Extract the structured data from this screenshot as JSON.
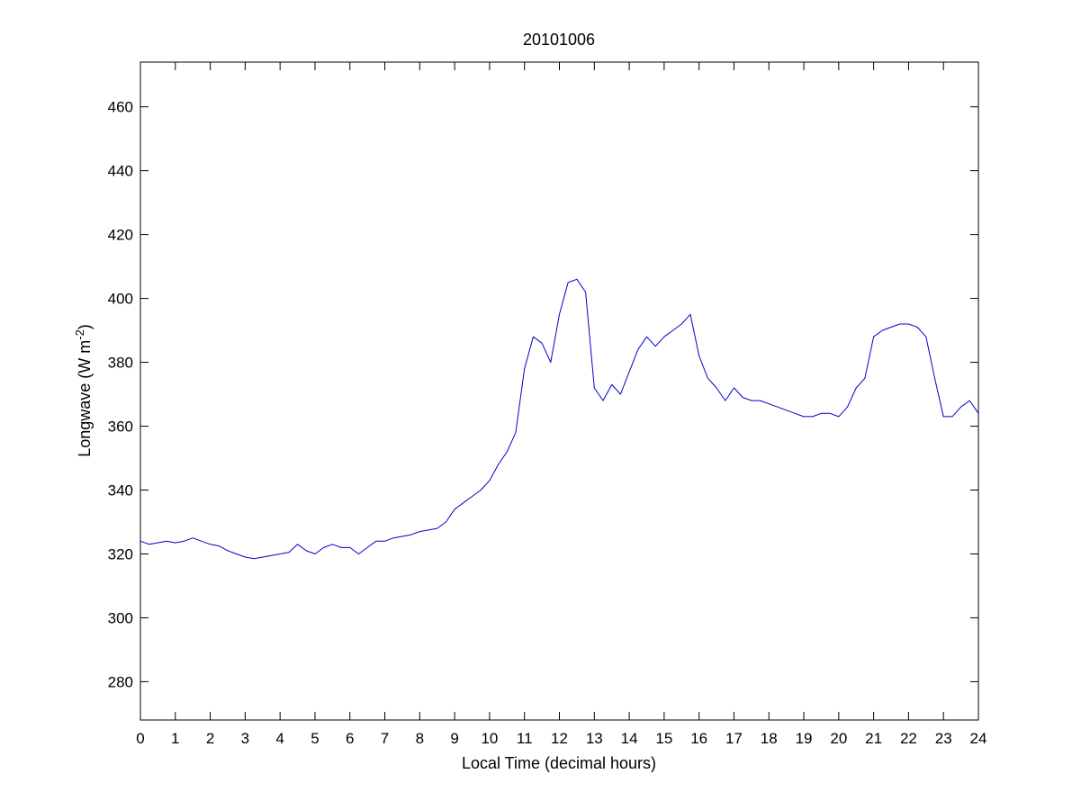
{
  "chart_data": {
    "type": "line",
    "title": "20101006",
    "xlabel": "Local Time (decimal hours)",
    "ylabel_main": "Longwave (W m",
    "ylabel_sup": "-2",
    "ylabel_close": ")",
    "xlim": [
      0,
      24
    ],
    "ylim": [
      268,
      474
    ],
    "xticks": [
      0,
      1,
      2,
      3,
      4,
      5,
      6,
      7,
      8,
      9,
      10,
      11,
      12,
      13,
      14,
      15,
      16,
      17,
      18,
      19,
      20,
      21,
      22,
      23,
      24
    ],
    "yticks": [
      280,
      300,
      320,
      340,
      360,
      380,
      400,
      420,
      440,
      460
    ],
    "grid": false,
    "line_color": "#0000c8",
    "series": [
      {
        "x": [
          0,
          0.25,
          0.5,
          0.75,
          1,
          1.25,
          1.5,
          1.75,
          2,
          2.25,
          2.5,
          2.75,
          3,
          3.25,
          3.5,
          3.75,
          4,
          4.25,
          4.5,
          4.75,
          5,
          5.25,
          5.5,
          5.75,
          6,
          6.25,
          6.5,
          6.75,
          7,
          7.25,
          7.5,
          7.75,
          8,
          8.25,
          8.5,
          8.75,
          9,
          9.25,
          9.5,
          9.75,
          10,
          10.25,
          10.5,
          10.75,
          11,
          11.25,
          11.5,
          11.75,
          12,
          12.25,
          12.5,
          12.75,
          13,
          13.25,
          13.5,
          13.75,
          14,
          14.25,
          14.5,
          14.75,
          15,
          15.25,
          15.5,
          15.75,
          16,
          16.25,
          16.5,
          16.75,
          17,
          17.25,
          17.5,
          17.75,
          18,
          18.25,
          18.5,
          18.75,
          19,
          19.25,
          19.5,
          19.75,
          20,
          20.25,
          20.5,
          20.75,
          21,
          21.25,
          21.5,
          21.75,
          22,
          22.25,
          22.5,
          22.75,
          23,
          23.25,
          23.5,
          23.75,
          24
        ],
        "values": [
          324,
          323,
          323.5,
          324,
          323.5,
          324,
          325,
          324,
          323,
          322.5,
          321,
          320,
          319,
          318.5,
          319,
          319.5,
          320,
          320.5,
          323,
          321,
          320,
          322,
          323,
          322,
          322,
          320,
          322,
          324,
          324,
          325,
          325.5,
          326,
          327,
          327.5,
          328,
          330,
          334,
          336,
          338,
          340,
          343,
          348,
          352,
          358,
          378,
          388,
          386,
          380,
          395,
          405,
          406,
          402,
          372,
          368,
          373,
          370,
          377,
          384,
          388,
          385,
          388,
          390,
          392,
          395,
          382,
          375,
          372,
          368,
          372,
          369,
          368,
          368,
          367,
          366,
          365,
          364,
          363,
          363,
          364,
          364,
          363,
          366,
          372,
          375,
          388,
          390,
          391,
          392,
          392,
          391,
          388,
          375,
          363,
          363,
          366,
          368,
          364
        ]
      }
    ]
  }
}
